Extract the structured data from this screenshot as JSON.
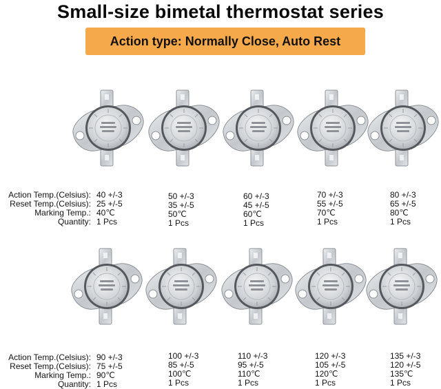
{
  "title": "Small-size bimetal thermostat series",
  "banner": "Action type: Normally Close, Auto Rest",
  "row_labels": {
    "action": "Action Temp.(Celsius):",
    "reset": "Reset  Temp.(Celsius):",
    "marking": "Marking Temp.:",
    "quantity": "Quantity:"
  },
  "items": [
    {
      "action": "40 +/-3",
      "reset": "25 +/-5",
      "marking": "40℃",
      "quantity": "1 Pcs"
    },
    {
      "action": "50 +/-3",
      "reset": "35 +/-5",
      "marking": "50℃",
      "quantity": "1 Pcs"
    },
    {
      "action": "60 +/-3",
      "reset": "45 +/-5",
      "marking": "60℃",
      "quantity": "1 Pcs"
    },
    {
      "action": "70 +/-3",
      "reset": "55 +/-5",
      "marking": "70℃",
      "quantity": "1 Pcs"
    },
    {
      "action": "80 +/-3",
      "reset": "65 +/-5",
      "marking": "80℃",
      "quantity": "1 Pcs"
    },
    {
      "action": "90 +/-3",
      "reset": "75 +/-5",
      "marking": "90℃",
      "quantity": "1 Pcs"
    },
    {
      "action": "100 +/-3",
      "reset": "85 +/-5",
      "marking": "100℃",
      "quantity": "1 Pcs"
    },
    {
      "action": "110 +/-3",
      "reset": "95 +/-5",
      "marking": "110℃",
      "quantity": "1 Pcs"
    },
    {
      "action": "120 +/-3",
      "reset": "105 +/-5",
      "marking": "120℃",
      "quantity": "1 Pcs"
    },
    {
      "action": "135 +/-3",
      "reset": "120 +/-5",
      "marking": "135℃",
      "quantity": "1 Pcs"
    }
  ],
  "colors": {
    "banner": "#f6a94b",
    "metal": "#c9ccd0",
    "dark_ring": "#6e7276"
  }
}
